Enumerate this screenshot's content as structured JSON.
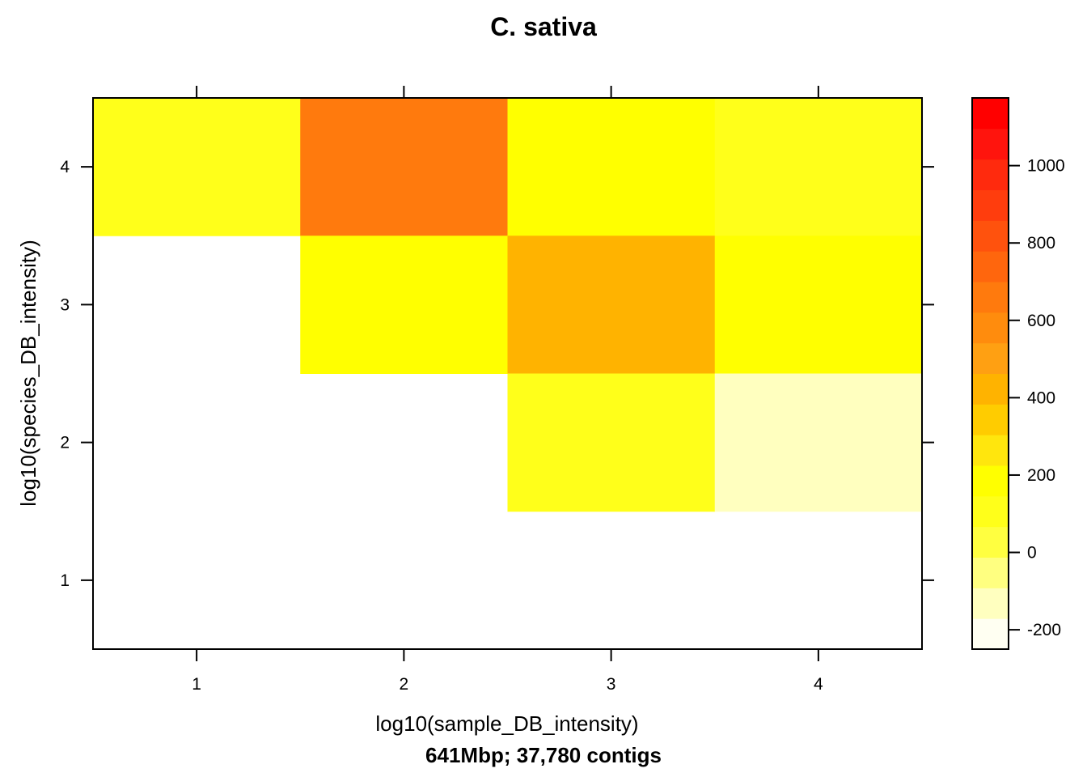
{
  "chart_data": {
    "type": "heatmap",
    "title": "C. sativa",
    "subtitle": "641Mbp; 37,780 contigs",
    "xlabel": "log10(sample_DB_intensity)",
    "ylabel": "log10(species_DB_intensity)",
    "x": [
      1,
      2,
      3,
      4
    ],
    "y": [
      1,
      2,
      3,
      4
    ],
    "xlim": [
      0.5,
      4.5
    ],
    "ylim": [
      0.5,
      4.5
    ],
    "x_ticks": [
      "1",
      "2",
      "3",
      "4"
    ],
    "y_ticks": [
      "1",
      "2",
      "3",
      "4"
    ],
    "cells": [
      {
        "x": 1,
        "y": 4,
        "value": 100
      },
      {
        "x": 2,
        "y": 4,
        "value": 640
      },
      {
        "x": 3,
        "y": 4,
        "value": 220
      },
      {
        "x": 4,
        "y": 4,
        "value": 80
      },
      {
        "x": 2,
        "y": 3,
        "value": 150
      },
      {
        "x": 3,
        "y": 3,
        "value": 420
      },
      {
        "x": 4,
        "y": 3,
        "value": 150
      },
      {
        "x": 3,
        "y": 2,
        "value": 80
      },
      {
        "x": 4,
        "y": 2,
        "value": -130
      }
    ],
    "colorbar": {
      "range": [
        -250,
        1175
      ],
      "ticks": [
        -200,
        0,
        200,
        400,
        600,
        800,
        1000
      ],
      "tick_labels": [
        "-200",
        "0",
        "200",
        "400",
        "600",
        "800",
        "1000"
      ],
      "colors": [
        "#FFFFF2",
        "#FFFFBF",
        "#FFFF80",
        "#FFFF40",
        "#FFFF1A",
        "#FFFF00",
        "#FFE60D",
        "#FFCC00",
        "#FFB300",
        "#FFA012",
        "#FF8C0D",
        "#FF7A0D",
        "#FF660D",
        "#FF520D",
        "#FF3D0D",
        "#FF2A0D",
        "#FF140D",
        "#FF0000"
      ]
    },
    "grid": false
  }
}
